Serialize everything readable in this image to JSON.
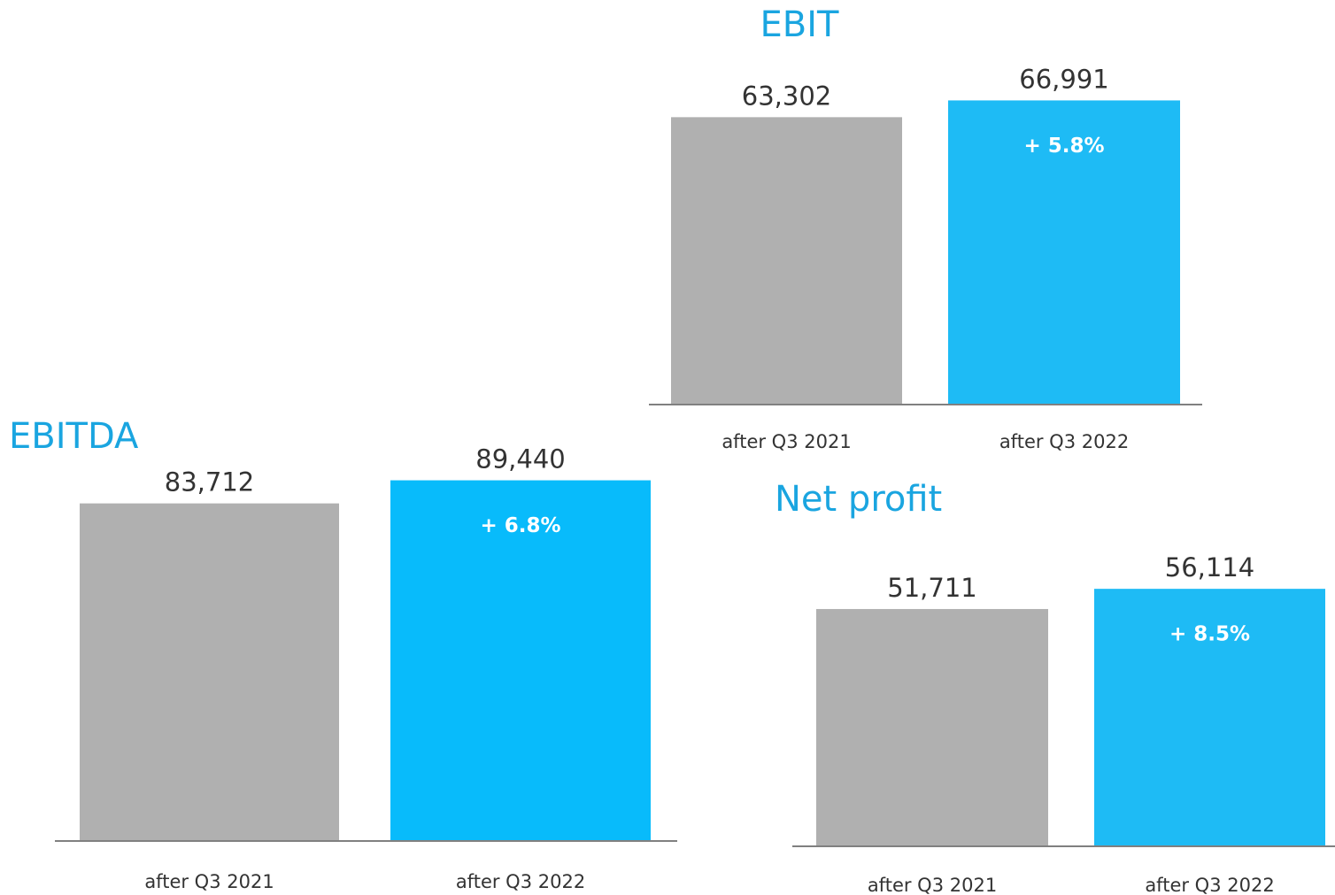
{
  "chart_data": [
    {
      "type": "bar",
      "title": "EBIT",
      "categories": [
        "after Q3 2021",
        "after Q3 2022"
      ],
      "values": [
        63302,
        66991
      ],
      "value_labels": [
        "63,302",
        "66,991"
      ],
      "colors": [
        "#b0b0b0",
        "#1ebbf5"
      ],
      "annotations": [
        "+ 5.8%"
      ],
      "ylim": [
        0,
        70000
      ]
    },
    {
      "type": "bar",
      "title": "EBITDA",
      "categories": [
        "after Q3 2021",
        "after Q3 2022"
      ],
      "values": [
        83712,
        89440
      ],
      "value_labels": [
        "83,712",
        "89,440"
      ],
      "colors": [
        "#b0b0b0",
        "#08bbfb"
      ],
      "annotations": [
        "+ 6.8%"
      ],
      "ylim": [
        0,
        90000
      ]
    },
    {
      "type": "bar",
      "title": "Net profit",
      "categories": [
        "after Q3 2021",
        "after Q3 2022"
      ],
      "values": [
        51711,
        56114
      ],
      "value_labels": [
        "51,711",
        "56,114"
      ],
      "colors": [
        "#b0b0b0",
        "#1ebbf5"
      ],
      "annotations": [
        "+ 8.5%"
      ],
      "ylim": [
        0,
        60000
      ]
    }
  ]
}
